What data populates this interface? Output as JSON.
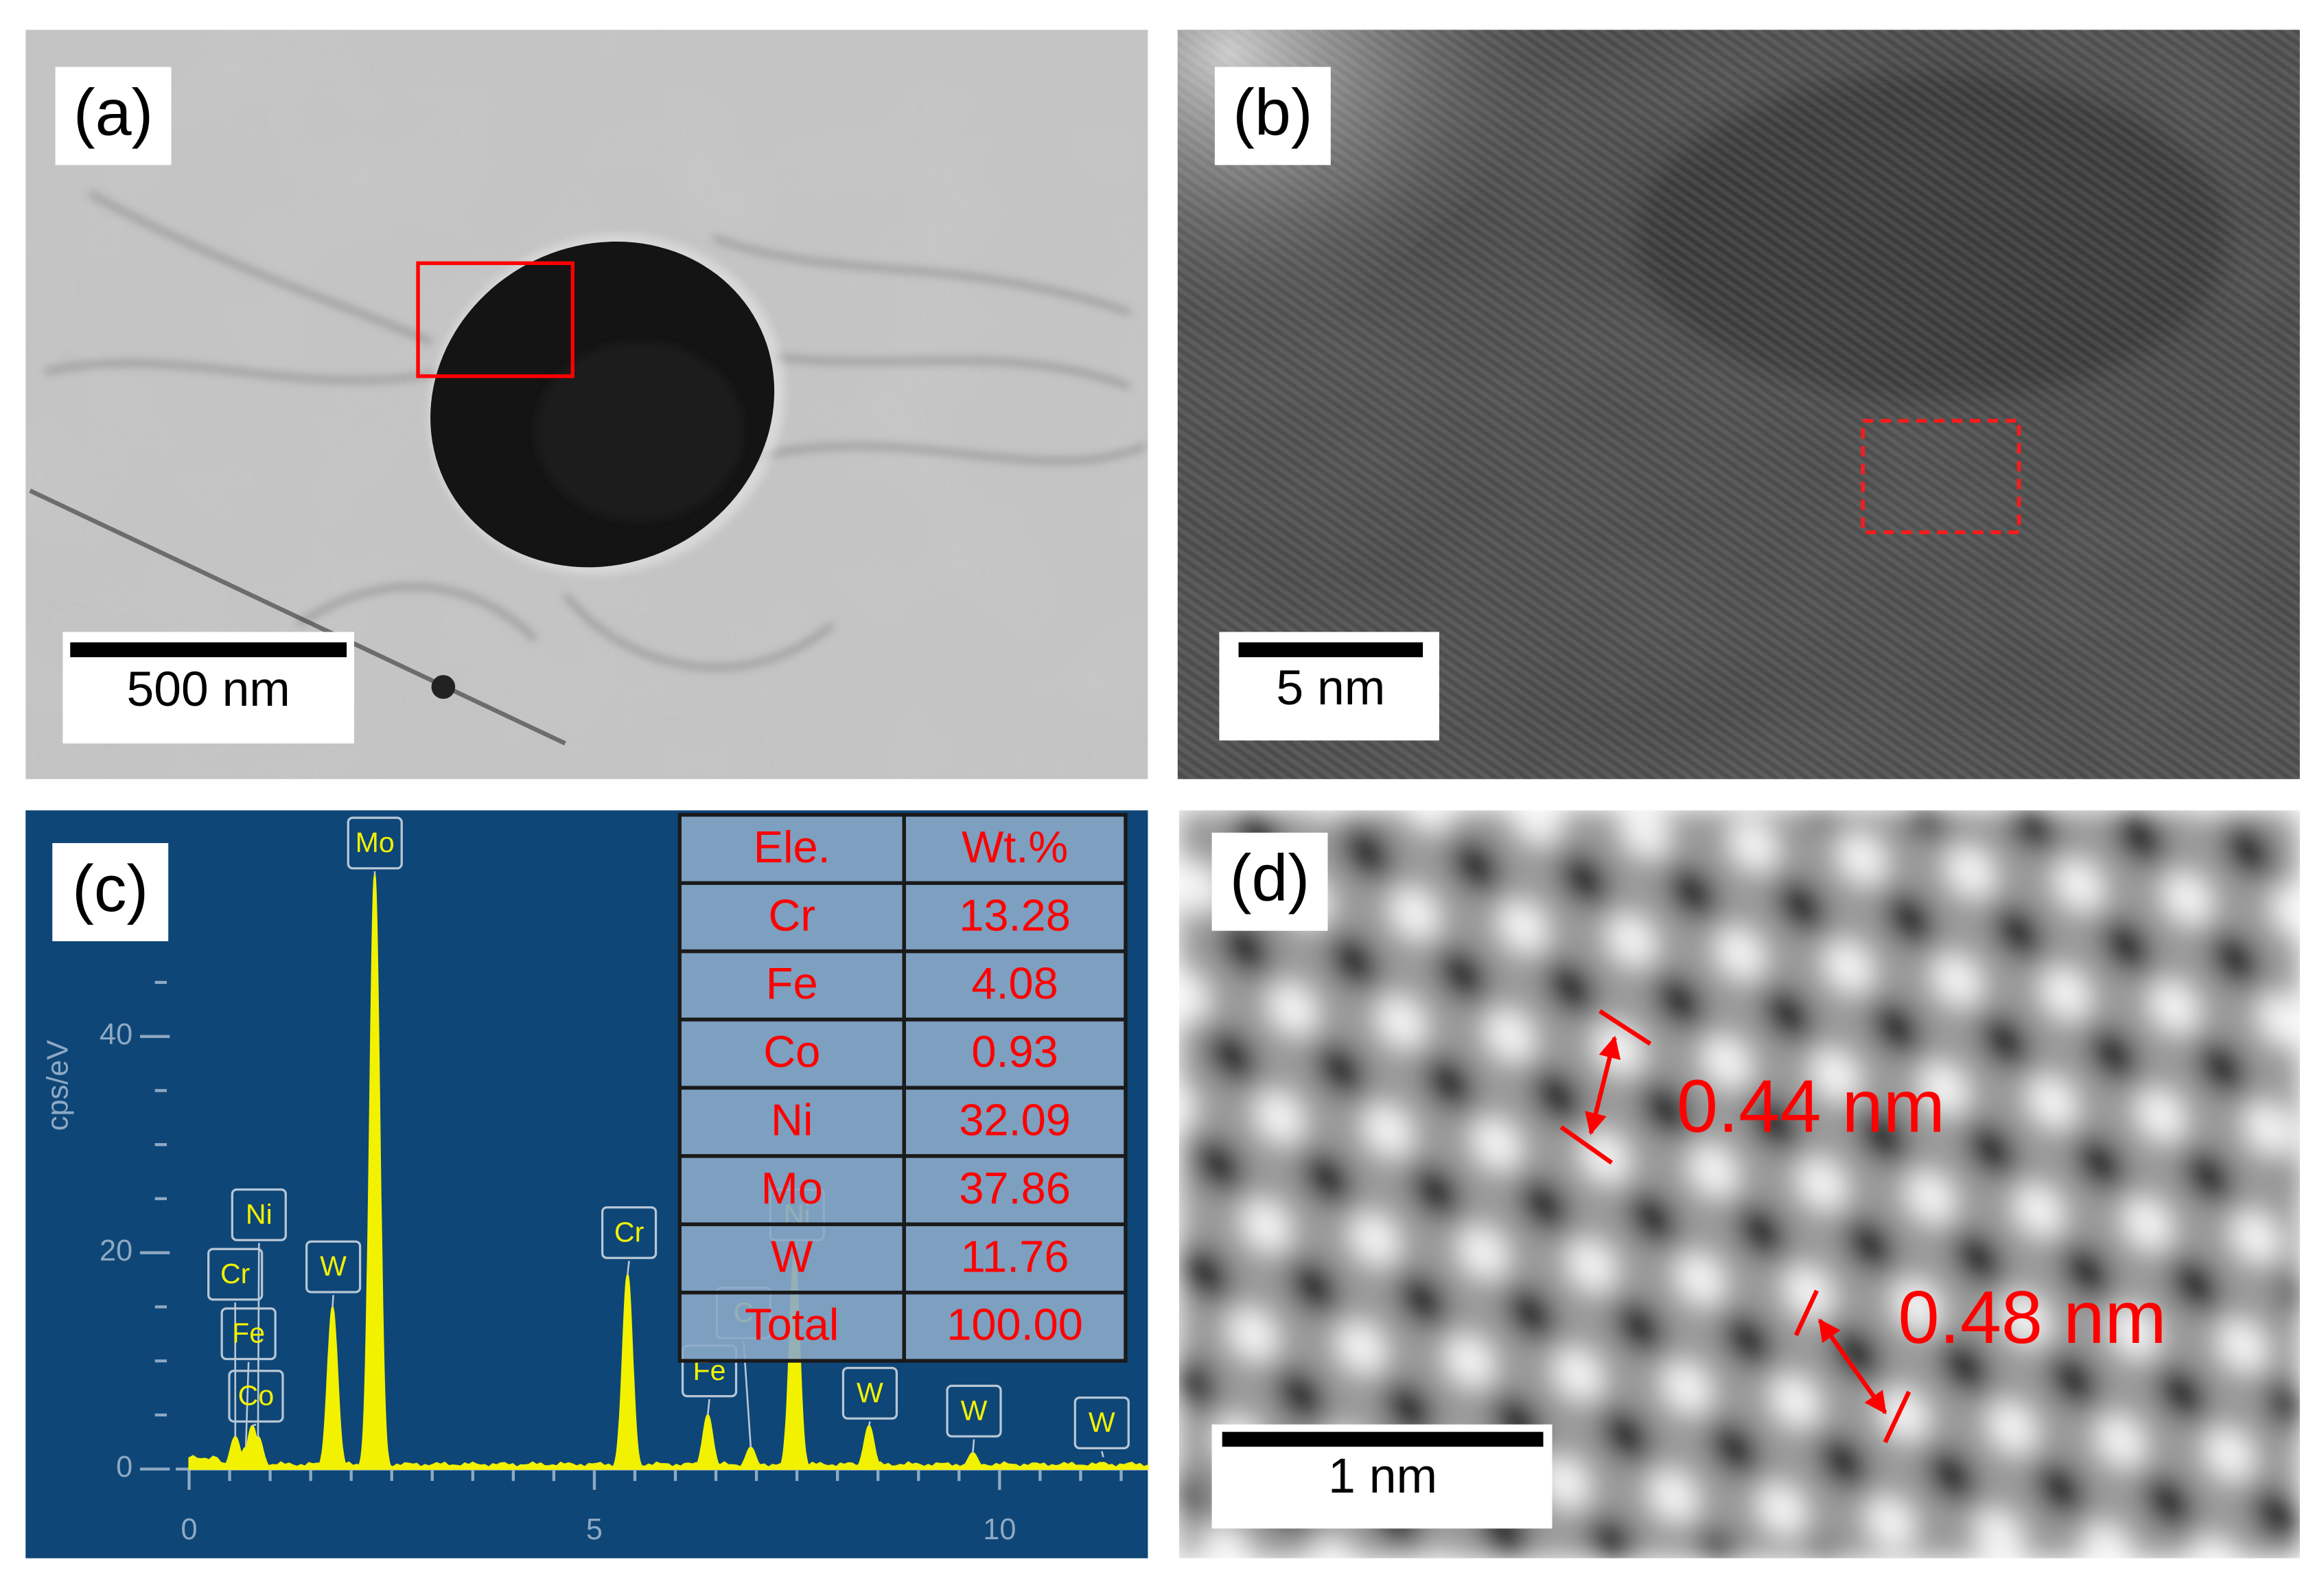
{
  "panels": [
    {
      "label": "(a)",
      "scale_bar": "500 nm"
    },
    {
      "label": "(b)",
      "scale_bar": "5 nm"
    },
    {
      "label": "(c)",
      "spectrum": {
        "y_label": "cps/eV",
        "xlim": [
          0,
          11.83
        ],
        "ylim": [
          0,
          60.5
        ],
        "xticks": [
          0,
          5,
          10
        ],
        "yticks": [
          0,
          20,
          40
        ],
        "x_minor_ticks": [
          0.5,
          1,
          1.5,
          2,
          2.5,
          3,
          3.5,
          4,
          4.5,
          5.5,
          6,
          6.5,
          7,
          7.5,
          8,
          8.5,
          9,
          9.5,
          10.5,
          11,
          11.5
        ],
        "y_minor_ticks": [
          5,
          10,
          15,
          25,
          30,
          35,
          45,
          50,
          55
        ],
        "peaks": [
          {
            "label": "Ni",
            "x": 0.85,
            "y": 3
          },
          {
            "label": "Cr",
            "x": 0.57,
            "y": 3
          },
          {
            "label": "Fe",
            "x": 0.7,
            "y": 2
          },
          {
            "label": "Co",
            "x": 0.78,
            "y": 4
          },
          {
            "label": "W",
            "x": 1.77,
            "y": 15
          },
          {
            "label": "Mo",
            "x": 2.29,
            "y": 55
          },
          {
            "label": "Cr",
            "x": 5.41,
            "y": 18
          },
          {
            "label": "Fe",
            "x": 6.4,
            "y": 5
          },
          {
            "label": "C",
            "x": 6.93,
            "y": 2
          },
          {
            "label": "Ni",
            "x": 7.47,
            "y": 20
          },
          {
            "label": "W",
            "x": 8.39,
            "y": 4
          },
          {
            "label": "W",
            "x": 9.67,
            "y": 1.5
          },
          {
            "label": "W",
            "x": 11.28,
            "y": 0.6
          }
        ]
      },
      "table": {
        "header": [
          "Ele.",
          "Wt.%"
        ],
        "rows": [
          [
            "Cr",
            "13.28"
          ],
          [
            "Fe",
            "4.08"
          ],
          [
            "Co",
            "0.93"
          ],
          [
            "Ni",
            "32.09"
          ],
          [
            "Mo",
            "37.86"
          ],
          [
            "W",
            "11.76"
          ],
          [
            "Total",
            "100.00"
          ]
        ]
      }
    },
    {
      "label": "(d)",
      "scale_bar": "1 nm",
      "spacings": [
        "0.44 nm",
        "0.48 nm"
      ]
    }
  ]
}
